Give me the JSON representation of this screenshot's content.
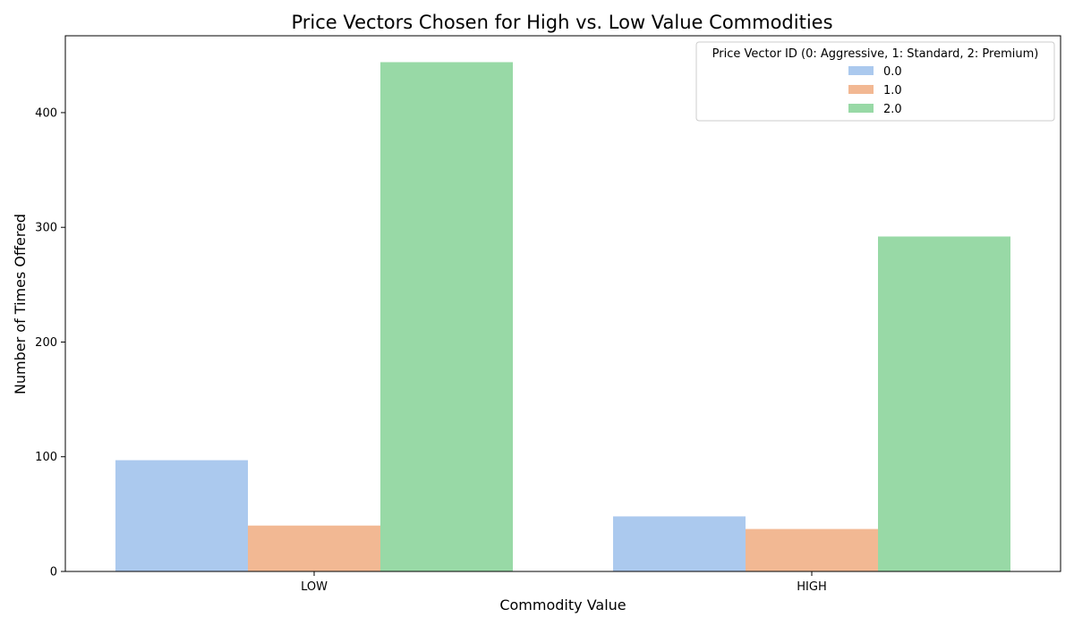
{
  "chart_data": {
    "type": "bar",
    "title": "Price Vectors Chosen for High vs. Low Value Commodities",
    "xlabel": "Commodity Value",
    "ylabel": "Number of Times Offered",
    "categories": [
      "LOW",
      "HIGH"
    ],
    "ylim": [
      0,
      467
    ],
    "yticks": [
      0,
      100,
      200,
      300,
      400
    ],
    "legend": {
      "title": "Price Vector ID (0: Aggressive, 1: Standard, 2: Premium)",
      "placement": "top-right"
    },
    "series": [
      {
        "name": "0.0",
        "color": "#abc9ee",
        "values": [
          97,
          48
        ]
      },
      {
        "name": "1.0",
        "color": "#f2b893",
        "values": [
          40,
          37
        ]
      },
      {
        "name": "2.0",
        "color": "#98d9a6",
        "values": [
          444,
          292
        ]
      }
    ],
    "grid": false
  }
}
